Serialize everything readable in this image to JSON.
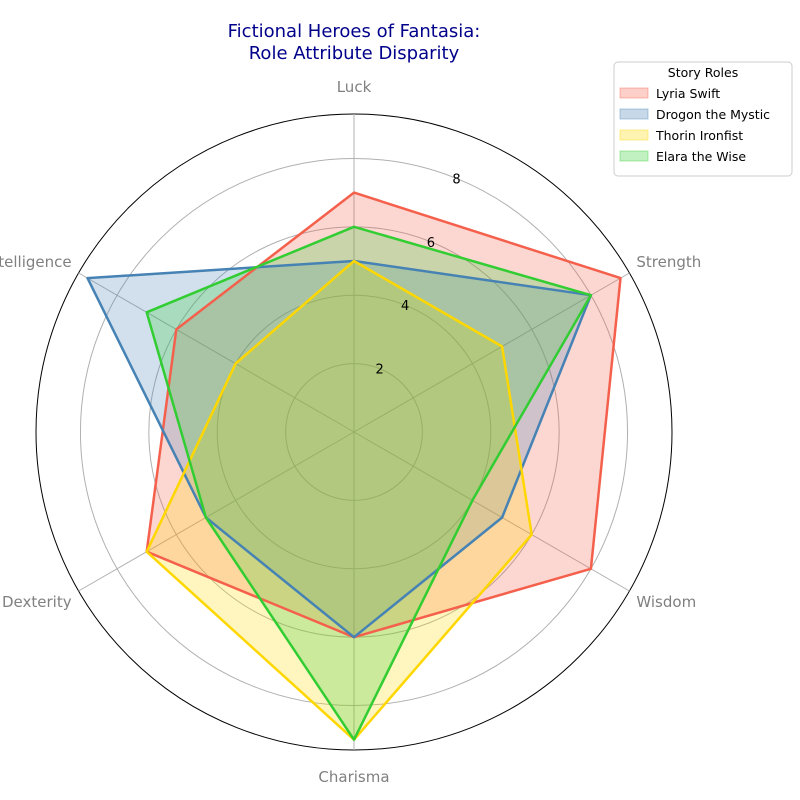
{
  "chart_data": {
    "type": "radar",
    "title": "Fictional Heroes of Fantasia:\nRole Attribute Disparity",
    "axes": [
      "Luck",
      "Strength",
      "Wisdom",
      "Charisma",
      "Dexterity",
      "Intelligence"
    ],
    "rticks": [
      "2",
      "4",
      "6",
      "8"
    ],
    "rlim": [
      0,
      9.3
    ],
    "grid": true,
    "legend": {
      "title": "Story Roles",
      "placement": "top-right"
    },
    "series": [
      {
        "name": "Lyria Swift",
        "color": "#f4604c",
        "values": [
          7,
          9,
          8,
          6,
          7,
          6
        ]
      },
      {
        "name": "Drogon the Mystic",
        "color": "#4682b4",
        "values": [
          5,
          8,
          5,
          6,
          5,
          9
        ]
      },
      {
        "name": "Thorin Ironfist",
        "color": "#ffd700",
        "values": [
          5,
          5,
          6,
          9,
          7,
          4
        ]
      },
      {
        "name": "Elara the Wise",
        "color": "#32cd32",
        "values": [
          6,
          8,
          4,
          9,
          5,
          7
        ]
      }
    ]
  }
}
